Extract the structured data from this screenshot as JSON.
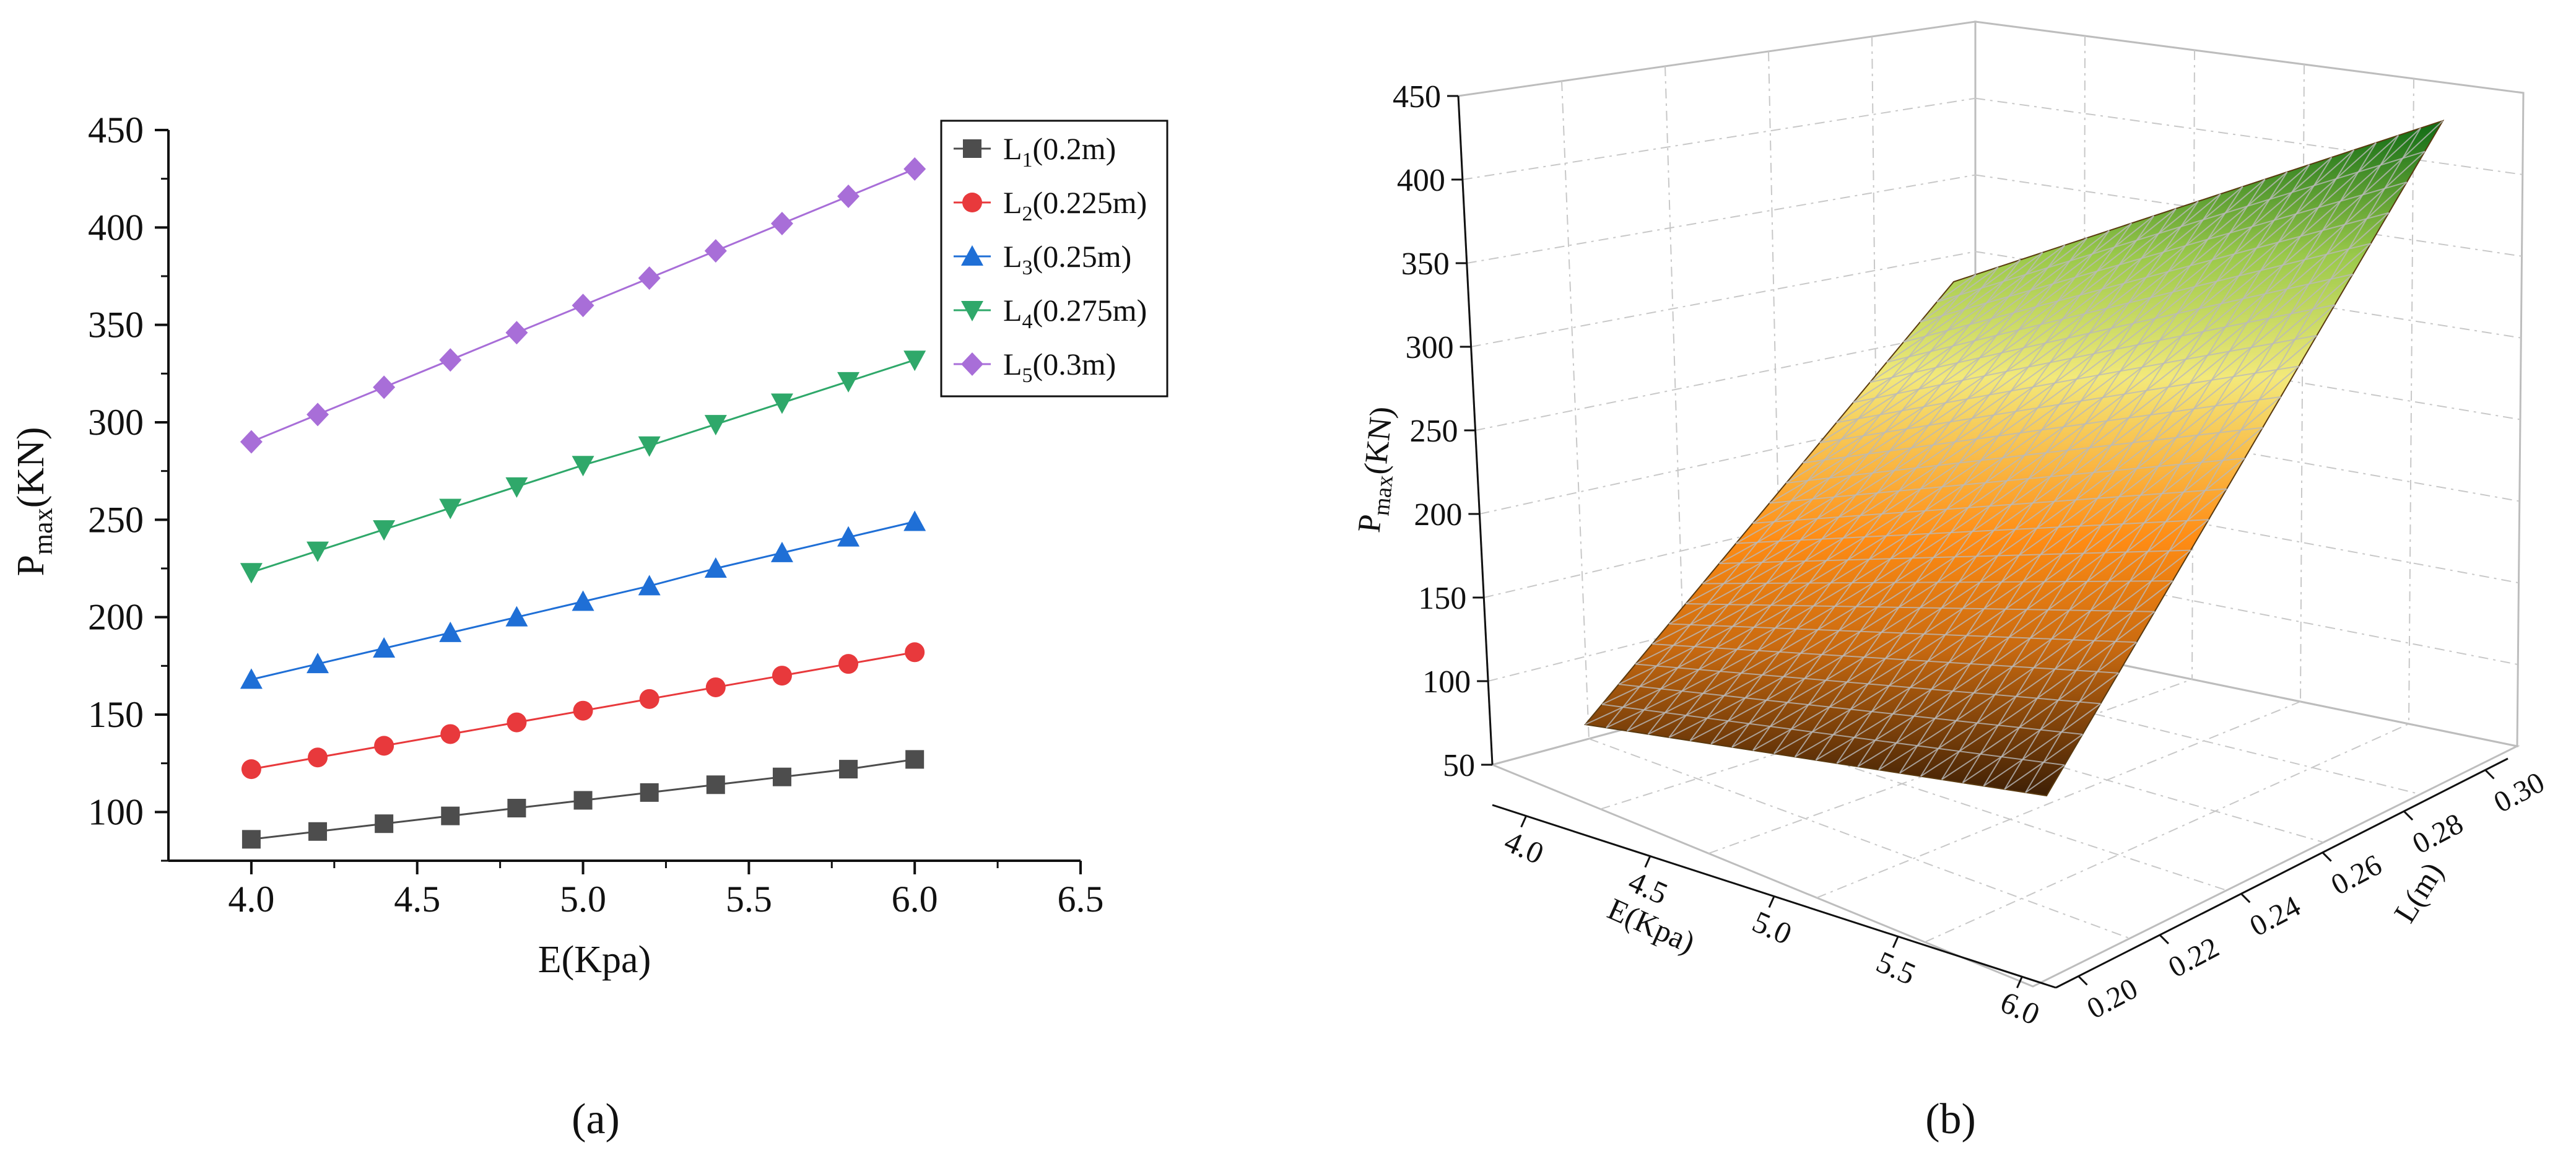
{
  "chart_data": [
    {
      "panel_label": "(a)",
      "type": "line",
      "title": "",
      "xlabel": "E(Kpa)",
      "ylabel": "Pmax(KN)",
      "ylabel_main": "P",
      "ylabel_sub": "max",
      "ylabel_tail": "(KN)",
      "xlim": [
        3.75,
        6.5
      ],
      "ylim": [
        75,
        450
      ],
      "xticks": [
        "4.0",
        "4.5",
        "5.0",
        "5.5",
        "6.0",
        "6.5"
      ],
      "yticks": [
        "100",
        "150",
        "200",
        "250",
        "300",
        "350",
        "400",
        "450"
      ],
      "legend_position": "top-right",
      "x": [
        4.0,
        4.2,
        4.4,
        4.6,
        4.8,
        5.0,
        5.2,
        5.4,
        5.6,
        5.8,
        6.0
      ],
      "series": [
        {
          "name": "L1(0.2m)",
          "label_main": "L",
          "label_sub": "1",
          "label_tail": "(0.2m)",
          "marker": "square",
          "color": "#4d4d4d",
          "values": [
            86,
            90,
            94,
            98,
            102,
            106,
            110,
            114,
            118,
            122,
            127
          ]
        },
        {
          "name": "L2(0.225m)",
          "label_main": "L",
          "label_sub": "2",
          "label_tail": "(0.225m)",
          "marker": "circle",
          "color": "#e8393c",
          "values": [
            122,
            128,
            134,
            140,
            146,
            152,
            158,
            164,
            170,
            176,
            182
          ]
        },
        {
          "name": "L3(0.25m)",
          "label_main": "L",
          "label_sub": "3",
          "label_tail": "(0.25m)",
          "marker": "triangle-up",
          "color": "#1f6fd6",
          "values": [
            168,
            176,
            184,
            192,
            200,
            208,
            216,
            225,
            233,
            241,
            249
          ]
        },
        {
          "name": "L4(0.275m)",
          "label_main": "L",
          "label_sub": "4",
          "label_tail": "(0.275m)",
          "marker": "triangle-down",
          "color": "#2fa86a",
          "values": [
            223,
            234,
            245,
            256,
            267,
            278,
            288,
            299,
            310,
            321,
            332
          ]
        },
        {
          "name": "L5(0.3m)",
          "label_main": "L",
          "label_sub": "5",
          "label_tail": "(0.3m)",
          "marker": "diamond",
          "color": "#a86ed8",
          "values": [
            290,
            304,
            318,
            332,
            346,
            360,
            374,
            388,
            402,
            416,
            430
          ]
        }
      ]
    },
    {
      "panel_label": "(b)",
      "type": "surface3d",
      "title": "",
      "xlabel": "E(Kpa)",
      "ylabel": "L(m)",
      "zlabel": "Pmax(KN)",
      "zlabel_main": "P",
      "zlabel_sub": "max",
      "zlabel_tail": "(KN)",
      "xlim": [
        4.0,
        6.0
      ],
      "ylim": [
        0.2,
        0.3
      ],
      "zlim": [
        50,
        450
      ],
      "xticks": [
        "4.0",
        "4.5",
        "5.0",
        "5.5",
        "6.0"
      ],
      "yticks": [
        "0.20",
        "0.22",
        "0.24",
        "0.26",
        "0.28",
        "0.30"
      ],
      "zticks": [
        "50",
        "100",
        "150",
        "200",
        "250",
        "300",
        "350",
        "400",
        "450"
      ],
      "corner_values": {
        "E4_L0.2": 86,
        "E6_L0.2": 127,
        "E4_L0.3": 290,
        "E6_L0.3": 430
      },
      "colormap": [
        "#3d1f05",
        "#c96a10",
        "#ff8c14",
        "#f3e97a",
        "#9ac94a",
        "#0f6a14"
      ]
    }
  ]
}
